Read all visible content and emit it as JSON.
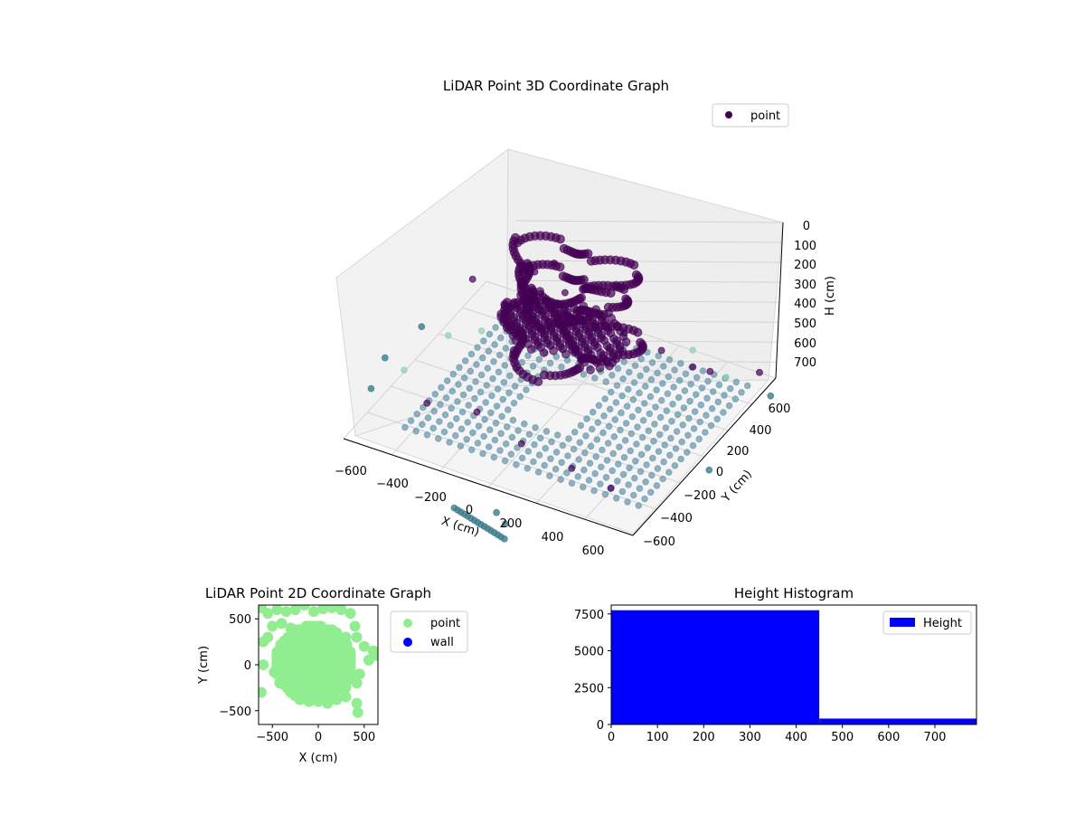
{
  "colors": {
    "point_3d_high": "#440154",
    "point_3d_low": "#3b7c8c",
    "point_3d_floor": "#6b98ad",
    "point_3d_far": "#8fd1b4",
    "point_2d": "#90ee90",
    "wall_2d": "#0000ff",
    "histogram_bar": "#0000ff",
    "grid": "#d3d3d3",
    "pane": "#f2f2f2"
  },
  "chart_data": [
    {
      "id": "lidar-3d",
      "type": "scatter",
      "title": "LiDAR Point 3D Coordinate Graph",
      "xlabel": "X (cm)",
      "ylabel": "Y (cm)",
      "zlabel": "H (cm)",
      "xticks": [
        "−600",
        "−400",
        "−200",
        "0",
        "200",
        "400",
        "600"
      ],
      "yticks": [
        "−600",
        "−400",
        "−200",
        "0",
        "200",
        "400",
        "600"
      ],
      "zticks": [
        "0",
        "100",
        "200",
        "300",
        "400",
        "500",
        "600",
        "700"
      ],
      "xlim": [
        -650,
        650
      ],
      "ylim": [
        -650,
        650
      ],
      "zlim": [
        0,
        780
      ],
      "zaxis_inverted": true,
      "grid": true,
      "legend": {
        "placement": "upper-right",
        "entries": [
          {
            "label": "point",
            "color": "#440154"
          }
        ]
      },
      "series": [
        {
          "name": "point",
          "note_points": [
            {
              "x": -550,
              "y": 300,
              "h": 520
            },
            {
              "x": -300,
              "y": 350,
              "h": 420
            },
            {
              "x": -200,
              "y": 200,
              "h": 400
            },
            {
              "x": -100,
              "y": 100,
              "h": 150
            },
            {
              "x": 0,
              "y": 0,
              "h": 200
            },
            {
              "x": 100,
              "y": -100,
              "h": 380
            },
            {
              "x": 200,
              "y": 150,
              "h": 420
            },
            {
              "x": 300,
              "y": 300,
              "h": 560
            },
            {
              "x": 450,
              "y": 450,
              "h": 700
            },
            {
              "x": -450,
              "y": -300,
              "h": 740
            },
            {
              "x": -250,
              "y": -250,
              "h": 740
            },
            {
              "x": 0,
              "y": -350,
              "h": 745
            },
            {
              "x": 250,
              "y": -400,
              "h": 745
            },
            {
              "x": 450,
              "y": -450,
              "h": 740
            },
            {
              "x": 350,
              "y": 500,
              "h": 745
            },
            {
              "x": 600,
              "y": 600,
              "h": 740
            }
          ]
        }
      ]
    },
    {
      "id": "lidar-2d",
      "type": "scatter",
      "title": "LiDAR Point 2D Coordinate Graph",
      "xlabel": "X (cm)",
      "ylabel": "Y (cm)",
      "xticks": [
        -500,
        0,
        500
      ],
      "yticks": [
        -500,
        0,
        500
      ],
      "xlim": [
        -650,
        650
      ],
      "ylim": [
        -650,
        650
      ],
      "legend": {
        "placement": "outside-right",
        "entries": [
          {
            "label": "point",
            "color": "#90ee90"
          },
          {
            "label": "wall",
            "color": "#0000ff"
          }
        ]
      },
      "series": [
        {
          "name": "point",
          "points": [
            [
              -620,
              620
            ],
            [
              -600,
              250
            ],
            [
              -550,
              560
            ],
            [
              -450,
              600
            ],
            [
              -350,
              580
            ],
            [
              -250,
              600
            ],
            [
              -150,
              650
            ],
            [
              -50,
              580
            ],
            [
              50,
              610
            ],
            [
              150,
              620
            ],
            [
              250,
              600
            ],
            [
              350,
              560
            ],
            [
              400,
              420
            ],
            [
              420,
              300
            ],
            [
              500,
              200
            ],
            [
              600,
              150
            ],
            [
              640,
              100
            ],
            [
              550,
              50
            ],
            [
              450,
              -100
            ],
            [
              420,
              -200
            ],
            [
              420,
              -420
            ],
            [
              430,
              -520
            ],
            [
              300,
              -350
            ],
            [
              200,
              -380
            ],
            [
              100,
              -420
            ],
            [
              0,
              -400
            ],
            [
              -100,
              -400
            ],
            [
              -200,
              -380
            ],
            [
              -300,
              -300
            ],
            [
              -420,
              -200
            ],
            [
              -480,
              -80
            ],
            [
              -600,
              0
            ],
            [
              -620,
              -300
            ],
            [
              -550,
              300
            ],
            [
              -500,
              420
            ],
            [
              -400,
              450
            ],
            [
              -300,
              400
            ],
            [
              -200,
              380
            ],
            [
              -100,
              420
            ],
            [
              0,
              400
            ],
            [
              100,
              380
            ],
            [
              200,
              350
            ],
            [
              300,
              300
            ],
            [
              -400,
              200
            ],
            [
              -300,
              200
            ],
            [
              -200,
              150
            ],
            [
              -100,
              150
            ],
            [
              0,
              150
            ],
            [
              100,
              150
            ],
            [
              200,
              100
            ],
            [
              300,
              100
            ],
            [
              -400,
              0
            ],
            [
              -300,
              0
            ],
            [
              -200,
              0
            ],
            [
              -100,
              0
            ],
            [
              0,
              0
            ],
            [
              100,
              0
            ],
            [
              200,
              0
            ],
            [
              300,
              0
            ],
            [
              -350,
              -150
            ],
            [
              -250,
              -150
            ],
            [
              -150,
              -150
            ],
            [
              -50,
              -150
            ],
            [
              50,
              -150
            ],
            [
              150,
              -150
            ],
            [
              250,
              -150
            ],
            [
              350,
              -150
            ],
            [
              -300,
              -250
            ],
            [
              -200,
              -250
            ],
            [
              -100,
              -250
            ],
            [
              0,
              -250
            ],
            [
              100,
              -250
            ],
            [
              200,
              -250
            ],
            [
              300,
              -250
            ],
            [
              -200,
              -330
            ],
            [
              0,
              -330
            ],
            [
              150,
              -330
            ]
          ]
        },
        {
          "name": "wall",
          "points": []
        }
      ]
    },
    {
      "id": "height-histogram",
      "type": "bar",
      "title": "Height Histogram",
      "xlabel": "",
      "ylabel": "",
      "xticks": [
        0,
        100,
        200,
        300,
        400,
        500,
        600,
        700
      ],
      "yticks": [
        0,
        2500,
        5000,
        7500
      ],
      "ytick_labels": [
        "0",
        "2500",
        "5000",
        "7500"
      ],
      "xlim": [
        0,
        790
      ],
      "ylim": [
        0,
        8100
      ],
      "legend": {
        "placement": "upper-right",
        "entries": [
          {
            "label": "Height",
            "color": "#0000ff"
          }
        ]
      },
      "series": [
        {
          "name": "Height",
          "bins": [
            {
              "start": 0,
              "end": 450,
              "count": 7750
            },
            {
              "start": 450,
              "end": 790,
              "count": 400
            }
          ]
        }
      ]
    }
  ]
}
